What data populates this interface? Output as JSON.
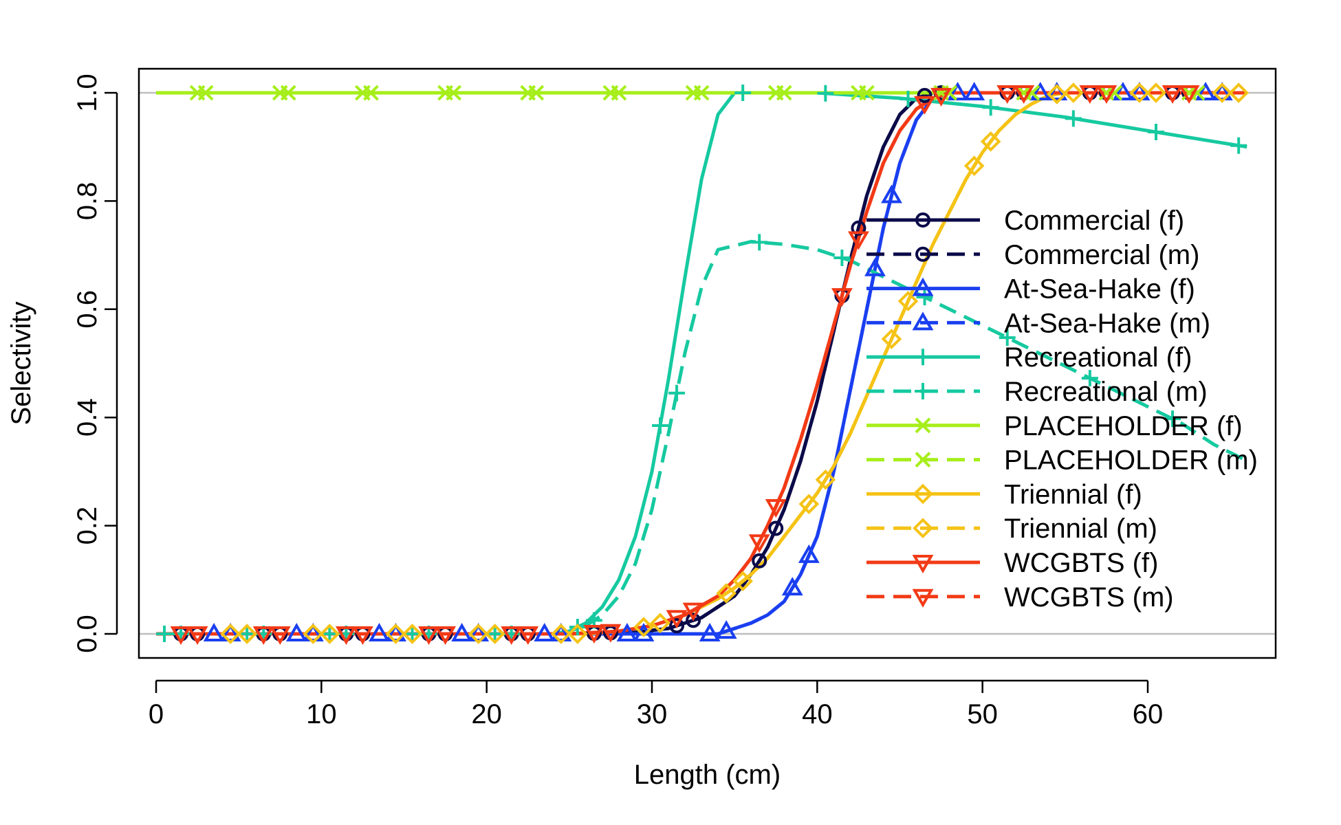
{
  "chart_data": {
    "type": "line",
    "title": "",
    "xlabel": "Length (cm)",
    "ylabel": "Selectivity",
    "xlim": [
      0,
      66
    ],
    "ylim": [
      0,
      1
    ],
    "x_ticks": [
      0,
      10,
      20,
      30,
      40,
      50,
      60
    ],
    "y_ticks": [
      0.0,
      0.2,
      0.4,
      0.6,
      0.8,
      1.0
    ],
    "x_tick_labels": [
      "0",
      "10",
      "20",
      "30",
      "40",
      "50",
      "60"
    ],
    "y_tick_labels": [
      "0.0",
      "0.2",
      "0.4",
      "0.6",
      "0.8",
      "1.0"
    ],
    "grid": "horizontal reference lines at 0 and 1",
    "legend_position": "right, inside plot",
    "series": [
      {
        "name": "Commercial (f)",
        "color": "#0b0b4a",
        "dash": "solid",
        "marker": "circle",
        "x": [
          0,
          25,
          29,
          31,
          33,
          35,
          36,
          37,
          38,
          39,
          40,
          41,
          42,
          43,
          44,
          45,
          46,
          47,
          49,
          66
        ],
        "y": [
          0,
          0,
          0.003,
          0.01,
          0.03,
          0.07,
          0.11,
          0.16,
          0.23,
          0.32,
          0.43,
          0.56,
          0.69,
          0.81,
          0.9,
          0.96,
          0.99,
          1,
          1,
          1
        ],
        "marker_x": [
          1.5,
          6.5,
          11.5,
          16.5,
          21.5,
          26.5,
          31.5,
          36.5,
          41.5,
          46.5,
          51.5,
          56.5,
          61.5
        ]
      },
      {
        "name": "Commercial (m)",
        "color": "#0b0b4a",
        "dash": "dashed",
        "marker": "circle",
        "x": [
          0,
          25,
          29,
          31,
          33,
          35,
          36,
          37,
          38,
          39,
          40,
          41,
          42,
          43,
          44,
          45,
          46,
          47,
          49,
          66
        ],
        "y": [
          0,
          0,
          0.003,
          0.01,
          0.03,
          0.07,
          0.11,
          0.16,
          0.23,
          0.32,
          0.43,
          0.56,
          0.69,
          0.81,
          0.9,
          0.96,
          0.99,
          1,
          1,
          1
        ],
        "marker_x": [
          2.5,
          7.5,
          12.5,
          17.5,
          22.5,
          27.5,
          32.5,
          37.5,
          42.5,
          47.5,
          52.5,
          57.5,
          62.5
        ]
      },
      {
        "name": "At-Sea-Hake (f)",
        "color": "#1a3ff0",
        "dash": "solid",
        "marker": "triangle-up",
        "x": [
          0,
          34,
          35,
          36,
          37,
          38,
          39,
          40,
          41,
          42,
          43,
          44,
          45,
          46,
          47,
          48,
          66
        ],
        "y": [
          0,
          0,
          0.01,
          0.02,
          0.035,
          0.06,
          0.11,
          0.18,
          0.3,
          0.45,
          0.6,
          0.75,
          0.87,
          0.95,
          0.99,
          1,
          1
        ],
        "marker_x": [
          3.5,
          8.5,
          13.5,
          18.5,
          23.5,
          28.5,
          33.5,
          38.5,
          43.5,
          48.5,
          53.5,
          58.5,
          63.5
        ]
      },
      {
        "name": "At-Sea-Hake (m)",
        "color": "#1a3ff0",
        "dash": "dashed",
        "marker": "triangle-up",
        "x": [
          0,
          34,
          35,
          36,
          37,
          38,
          39,
          40,
          41,
          42,
          43,
          44,
          45,
          46,
          47,
          48,
          66
        ],
        "y": [
          0,
          0,
          0.01,
          0.02,
          0.035,
          0.06,
          0.11,
          0.18,
          0.3,
          0.45,
          0.6,
          0.75,
          0.87,
          0.95,
          0.99,
          1,
          1
        ],
        "marker_x": [
          4.5,
          9.5,
          14.5,
          19.5,
          24.5,
          29.5,
          34.5,
          39.5,
          44.5,
          49.5,
          54.5,
          59.5,
          64.5
        ]
      },
      {
        "name": "Recreational (f)",
        "color": "#16c9a0",
        "dash": "solid",
        "marker": "plus",
        "x": [
          0,
          24,
          25,
          26,
          27,
          28,
          29,
          30,
          31,
          32,
          33,
          34,
          35,
          40,
          45,
          50,
          55,
          60,
          66
        ],
        "y": [
          0,
          0,
          0.005,
          0.02,
          0.05,
          0.1,
          0.18,
          0.3,
          0.47,
          0.66,
          0.84,
          0.96,
          1,
          1,
          0.99,
          0.975,
          0.955,
          0.93,
          0.9
        ],
        "marker_x": [
          0.5,
          5.5,
          10.5,
          15.5,
          20.5,
          25.5,
          30.5,
          35.5,
          40.5,
          45.5,
          50.5,
          55.5,
          60.5,
          65.5
        ]
      },
      {
        "name": "Recreational (m)",
        "color": "#16c9a0",
        "dash": "dashed",
        "marker": "plus",
        "x": [
          0,
          24,
          25,
          26,
          27,
          28,
          29,
          30,
          31,
          32,
          33,
          34,
          36,
          38,
          40,
          42,
          44,
          46,
          48,
          50,
          52,
          54,
          56,
          58,
          60,
          62,
          64,
          66
        ],
        "y": [
          0,
          0,
          0.005,
          0.015,
          0.035,
          0.07,
          0.13,
          0.23,
          0.37,
          0.52,
          0.64,
          0.71,
          0.725,
          0.72,
          0.71,
          0.69,
          0.66,
          0.63,
          0.6,
          0.57,
          0.54,
          0.51,
          0.48,
          0.45,
          0.42,
          0.39,
          0.35,
          0.32
        ],
        "marker_x": [
          1.5,
          6.5,
          11.5,
          16.5,
          21.5,
          26.5,
          31.5,
          36.5,
          41.5,
          46.5,
          51.5,
          56.5,
          61.5
        ]
      },
      {
        "name": "PLACEHOLDER (f)",
        "color": "#a6ee1a",
        "dash": "solid",
        "marker": "x",
        "x": [
          0,
          66
        ],
        "y": [
          1,
          1
        ],
        "marker_x": [
          2.5,
          7.5,
          12.5,
          17.5,
          22.5,
          27.5,
          32.5,
          37.5,
          42.5,
          47.5,
          52.5,
          57.5,
          62.5
        ]
      },
      {
        "name": "PLACEHOLDER (m)",
        "color": "#a6ee1a",
        "dash": "dashed",
        "marker": "x",
        "x": [
          0,
          66
        ],
        "y": [
          1,
          1
        ],
        "marker_x": [
          3,
          8,
          13,
          18,
          23,
          28,
          33,
          38,
          43,
          48,
          53,
          58,
          63
        ]
      },
      {
        "name": "Triennial (f)",
        "color": "#f5c316",
        "dash": "solid",
        "marker": "diamond",
        "x": [
          0,
          26,
          28,
          30,
          32,
          34,
          35,
          36,
          37,
          38,
          39,
          40,
          41,
          42,
          43,
          44,
          45,
          46,
          47,
          48,
          49,
          50,
          51,
          52,
          53,
          54,
          55,
          66
        ],
        "y": [
          0,
          0,
          0.005,
          0.015,
          0.035,
          0.065,
          0.085,
          0.11,
          0.14,
          0.18,
          0.22,
          0.26,
          0.31,
          0.37,
          0.44,
          0.51,
          0.58,
          0.65,
          0.72,
          0.78,
          0.84,
          0.89,
          0.93,
          0.96,
          0.98,
          0.995,
          1,
          1
        ],
        "marker_x": [
          4.5,
          9.5,
          14.5,
          19.5,
          24.5,
          29.5,
          34.5,
          39.5,
          44.5,
          49.5,
          54.5,
          59.5,
          64.5
        ]
      },
      {
        "name": "Triennial (m)",
        "color": "#f5c316",
        "dash": "dashed",
        "marker": "diamond",
        "x": [
          0,
          26,
          28,
          30,
          32,
          34,
          35,
          36,
          37,
          38,
          39,
          40,
          41,
          42,
          43,
          44,
          45,
          46,
          47,
          48,
          49,
          50,
          51,
          52,
          53,
          54,
          55,
          66
        ],
        "y": [
          0,
          0,
          0.005,
          0.015,
          0.035,
          0.065,
          0.085,
          0.11,
          0.14,
          0.18,
          0.22,
          0.26,
          0.31,
          0.37,
          0.44,
          0.51,
          0.58,
          0.65,
          0.72,
          0.78,
          0.84,
          0.89,
          0.93,
          0.96,
          0.98,
          0.995,
          1,
          1
        ],
        "marker_x": [
          5.5,
          10.5,
          15.5,
          20.5,
          25.5,
          30.5,
          35.5,
          40.5,
          45.5,
          50.5,
          55.5,
          60.5,
          65.5
        ]
      },
      {
        "name": "WCGBTS (f)",
        "color": "#f23a16",
        "dash": "solid",
        "marker": "triangle-down",
        "x": [
          0,
          25,
          28,
          30,
          32,
          34,
          35,
          36,
          37,
          38,
          39,
          40,
          41,
          42,
          43,
          44,
          45,
          46,
          47,
          48,
          66
        ],
        "y": [
          0,
          0,
          0.005,
          0.015,
          0.035,
          0.07,
          0.1,
          0.14,
          0.2,
          0.27,
          0.36,
          0.46,
          0.57,
          0.68,
          0.78,
          0.87,
          0.93,
          0.97,
          0.99,
          1,
          1
        ],
        "marker_x": [
          1.5,
          6.5,
          11.5,
          16.5,
          21.5,
          26.5,
          31.5,
          36.5,
          41.5,
          46.5,
          51.5,
          56.5,
          61.5
        ]
      },
      {
        "name": "WCGBTS (m)",
        "color": "#f23a16",
        "dash": "dashed",
        "marker": "triangle-down",
        "x": [
          0,
          25,
          28,
          30,
          32,
          34,
          35,
          36,
          37,
          38,
          39,
          40,
          41,
          42,
          43,
          44,
          45,
          46,
          47,
          48,
          66
        ],
        "y": [
          0,
          0,
          0.005,
          0.015,
          0.035,
          0.07,
          0.1,
          0.14,
          0.2,
          0.27,
          0.36,
          0.46,
          0.57,
          0.68,
          0.78,
          0.87,
          0.93,
          0.97,
          0.99,
          1,
          1
        ],
        "marker_x": [
          2.5,
          7.5,
          12.5,
          17.5,
          22.5,
          27.5,
          32.5,
          37.5,
          42.5,
          47.5,
          52.5,
          57.5,
          62.5
        ]
      }
    ]
  }
}
